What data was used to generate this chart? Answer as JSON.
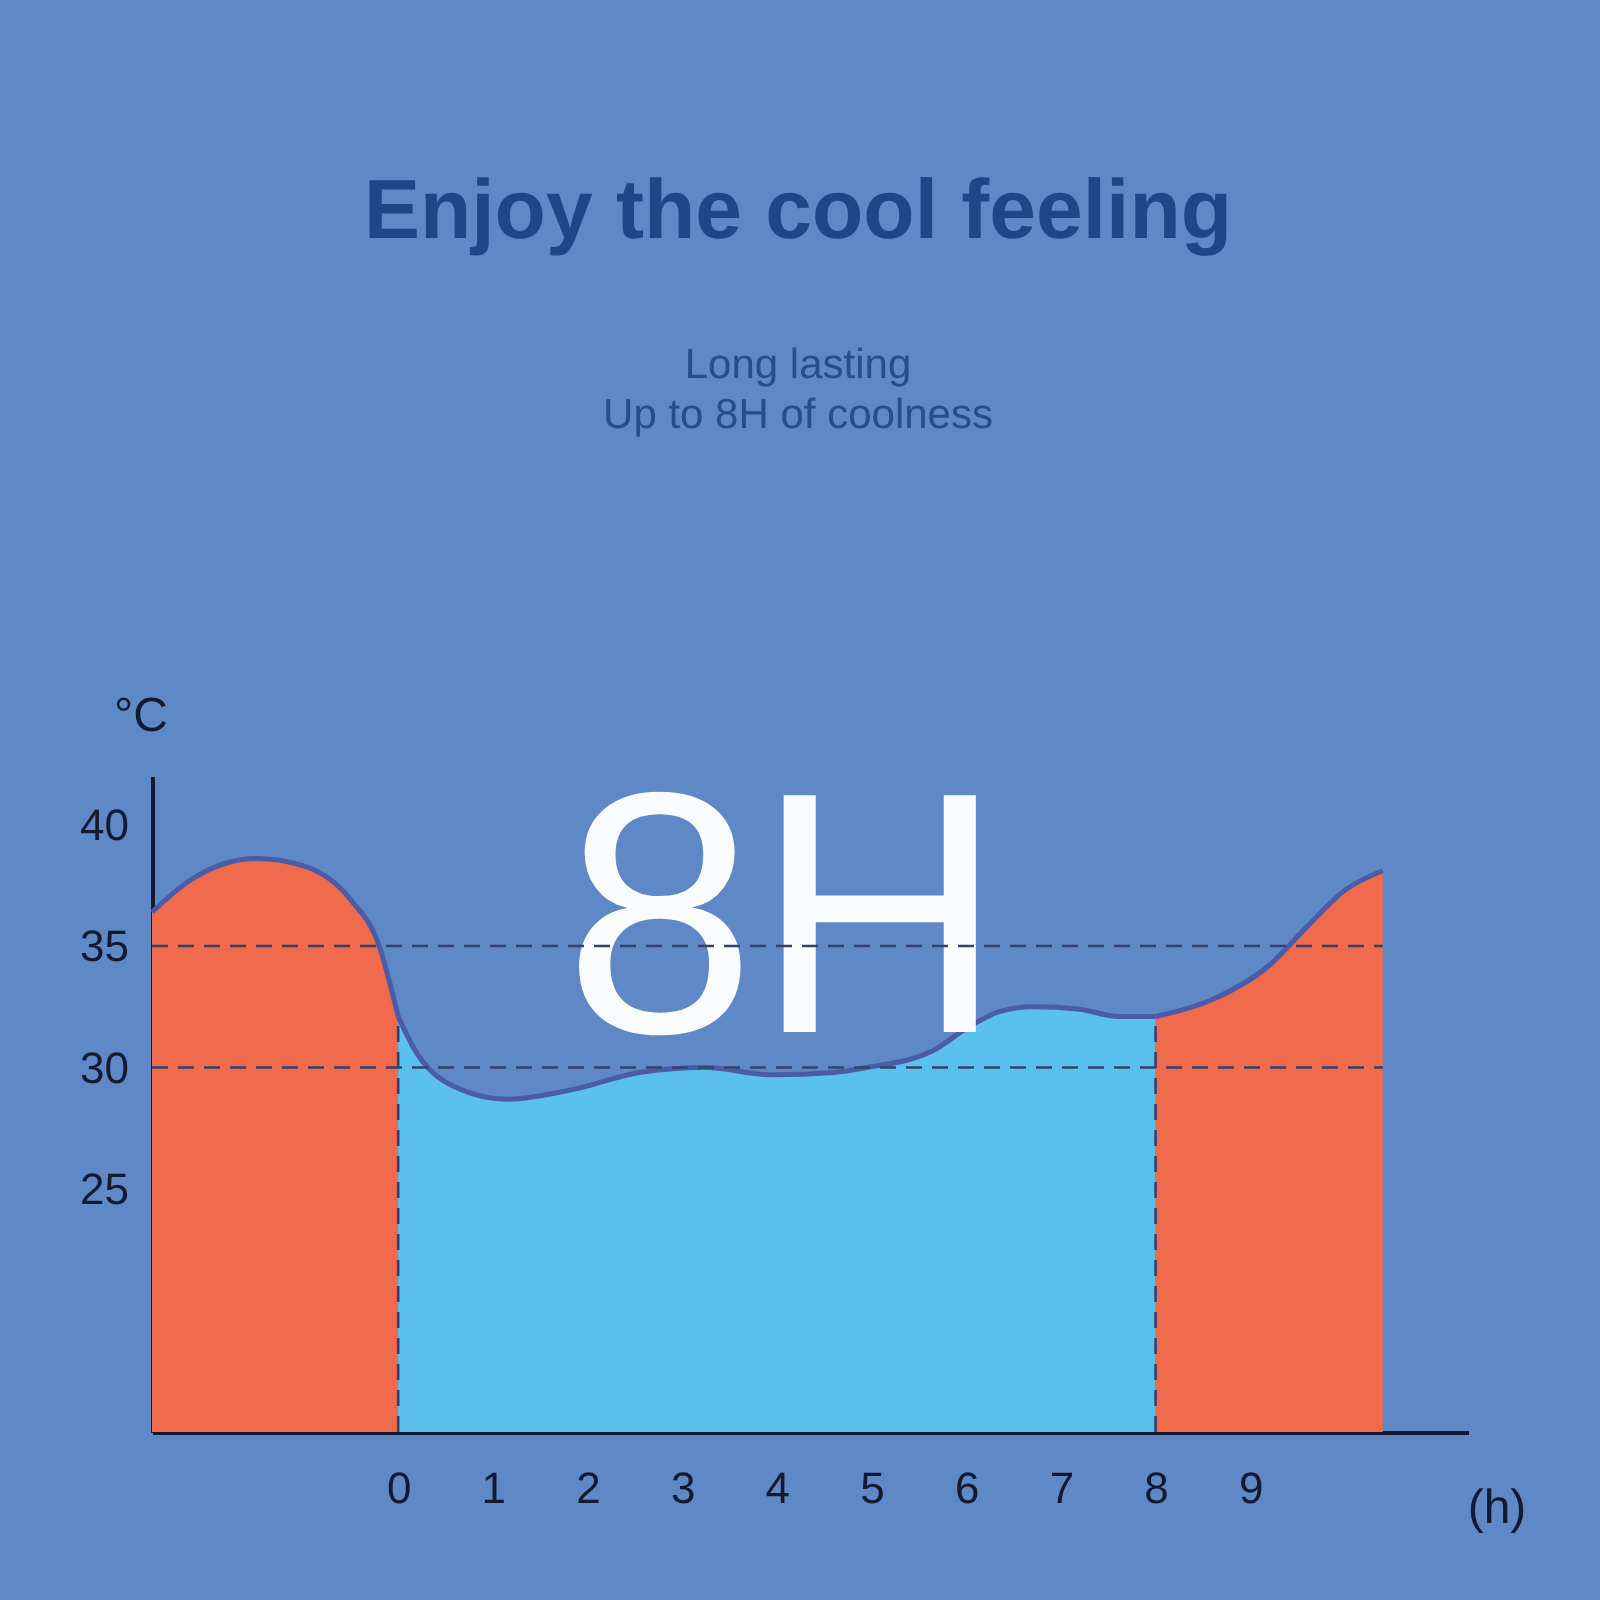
{
  "chart_data": {
    "type": "area",
    "title": "Enjoy the cool feeling",
    "subtitle": "Long lasting\nUp to 8H of coolness",
    "xlabel": "(h)",
    "ylabel": "°C",
    "xlim": [
      -2.6,
      11.3
    ],
    "ylim": [
      15,
      42
    ],
    "xticks": [
      0,
      1,
      2,
      3,
      4,
      5,
      6,
      7,
      8,
      9
    ],
    "yticks": [
      25,
      30,
      35,
      40
    ],
    "series": [
      {
        "color": "#f06a4c",
        "x": [
          -2.6,
          -2.2,
          -1.5,
          -1.0,
          -0.5,
          -0.2,
          0
        ],
        "values": [
          36.4,
          37.7,
          38.6,
          38.3,
          36.9,
          35.0,
          32.1
        ]
      },
      {
        "color": "#5ac1ee",
        "x": [
          0,
          0.15,
          0.6,
          1.15,
          1.85,
          2.55,
          3.25,
          3.95,
          4.6,
          4.95,
          5.65,
          6.0,
          6.35,
          6.7,
          7.2,
          7.6,
          8
        ],
        "values": [
          32.1,
          30.9,
          29.2,
          28.7,
          29.1,
          29.8,
          30.0,
          29.7,
          29.8,
          30.0,
          30.7,
          31.6,
          32.3,
          32.5,
          32.4,
          32.1,
          32.1
        ]
      },
      {
        "color": "#f06a4c",
        "x": [
          8,
          8.6,
          9.2,
          9.6,
          10.0,
          10.4
        ],
        "values": [
          32.1,
          32.8,
          34.2,
          35.8,
          37.3,
          38.1
        ]
      }
    ],
    "ref_lines": [
      {
        "axis": "y",
        "value": 35,
        "color": "#34426e",
        "line_style": "dashed"
      },
      {
        "axis": "y",
        "value": 30,
        "color": "#34426e",
        "line_style": "dashed"
      },
      {
        "axis": "x",
        "value": 0,
        "color": "#34426e",
        "line_style": "dashed"
      },
      {
        "axis": "x",
        "value": 8,
        "color": "#34426e",
        "line_style": "dashed"
      }
    ],
    "annotations": [
      "8H"
    ]
  }
}
